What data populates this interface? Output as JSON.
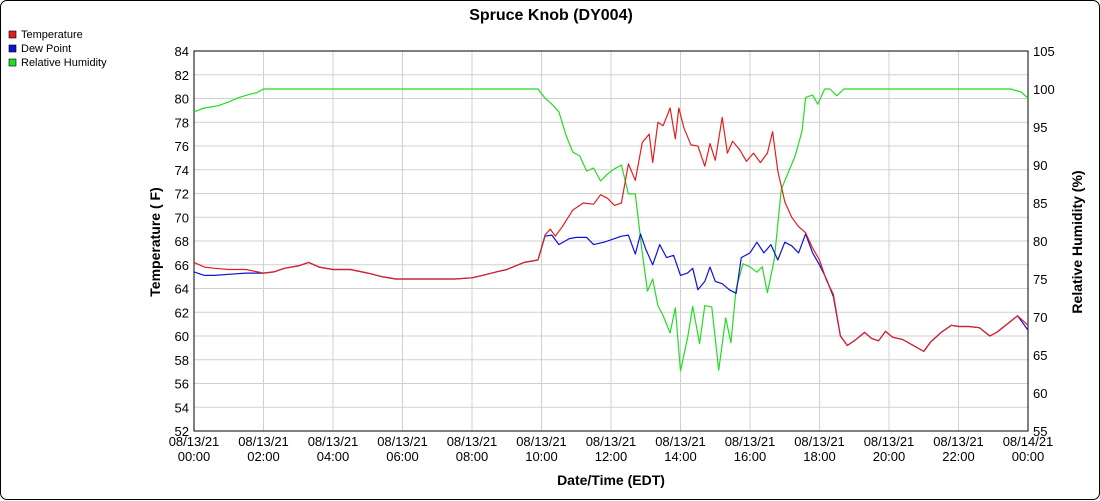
{
  "chart_data": {
    "type": "line",
    "title": "Spruce Knob (DY004)",
    "xlabel": "Date/Time (EDT)",
    "ylabel": "Temperature ( F)",
    "y2label": "Relative Humidity (%)",
    "xlim": [
      0,
      24
    ],
    "ylim": [
      52,
      84
    ],
    "y2lim": [
      55,
      105
    ],
    "grid": true,
    "legend_position": "top-left",
    "x_ticks": [
      {
        "date": "08/13/21",
        "time": "00:00"
      },
      {
        "date": "08/13/21",
        "time": "02:00"
      },
      {
        "date": "08/13/21",
        "time": "04:00"
      },
      {
        "date": "08/13/21",
        "time": "06:00"
      },
      {
        "date": "08/13/21",
        "time": "08:00"
      },
      {
        "date": "08/13/21",
        "time": "10:00"
      },
      {
        "date": "08/13/21",
        "time": "12:00"
      },
      {
        "date": "08/13/21",
        "time": "14:00"
      },
      {
        "date": "08/13/21",
        "time": "16:00"
      },
      {
        "date": "08/13/21",
        "time": "18:00"
      },
      {
        "date": "08/13/21",
        "time": "20:00"
      },
      {
        "date": "08/13/21",
        "time": "22:00"
      },
      {
        "date": "08/14/21",
        "time": "00:00"
      }
    ],
    "y_ticks": [
      52,
      54,
      56,
      58,
      60,
      62,
      64,
      66,
      68,
      70,
      72,
      74,
      76,
      78,
      80,
      82,
      84
    ],
    "y2_ticks": [
      55,
      60,
      65,
      70,
      75,
      80,
      85,
      90,
      95,
      100,
      105
    ],
    "series": [
      {
        "name": "Temperature",
        "color": "#e02020",
        "axis": "left",
        "points": [
          [
            0,
            66.2
          ],
          [
            0.3,
            65.8
          ],
          [
            0.6,
            65.7
          ],
          [
            1,
            65.6
          ],
          [
            1.5,
            65.6
          ],
          [
            2,
            65.3
          ],
          [
            2.3,
            65.4
          ],
          [
            2.6,
            65.7
          ],
          [
            3,
            65.9
          ],
          [
            3.3,
            66.2
          ],
          [
            3.6,
            65.8
          ],
          [
            4,
            65.6
          ],
          [
            4.5,
            65.6
          ],
          [
            5,
            65.3
          ],
          [
            5.4,
            65.0
          ],
          [
            5.8,
            64.8
          ],
          [
            6,
            64.8
          ],
          [
            6.5,
            64.8
          ],
          [
            7,
            64.8
          ],
          [
            7.5,
            64.8
          ],
          [
            8,
            64.9
          ],
          [
            8.3,
            65.1
          ],
          [
            8.7,
            65.4
          ],
          [
            9,
            65.6
          ],
          [
            9.5,
            66.2
          ],
          [
            9.9,
            66.4
          ],
          [
            10.1,
            68.5
          ],
          [
            10.25,
            69.0
          ],
          [
            10.4,
            68.4
          ],
          [
            10.6,
            69.2
          ],
          [
            10.9,
            70.6
          ],
          [
            11.2,
            71.2
          ],
          [
            11.5,
            71.1
          ],
          [
            11.7,
            71.9
          ],
          [
            11.9,
            71.6
          ],
          [
            12.1,
            71.0
          ],
          [
            12.3,
            71.2
          ],
          [
            12.5,
            74.5
          ],
          [
            12.7,
            73.1
          ],
          [
            12.9,
            76.3
          ],
          [
            13.1,
            77.0
          ],
          [
            13.2,
            74.6
          ],
          [
            13.35,
            78.0
          ],
          [
            13.5,
            77.7
          ],
          [
            13.7,
            79.2
          ],
          [
            13.85,
            76.6
          ],
          [
            13.95,
            79.2
          ],
          [
            14.1,
            77.5
          ],
          [
            14.3,
            76.1
          ],
          [
            14.5,
            76.0
          ],
          [
            14.7,
            74.3
          ],
          [
            14.85,
            76.2
          ],
          [
            15,
            74.8
          ],
          [
            15.2,
            78.4
          ],
          [
            15.35,
            75.4
          ],
          [
            15.5,
            76.4
          ],
          [
            15.7,
            75.7
          ],
          [
            15.9,
            74.7
          ],
          [
            16.1,
            75.4
          ],
          [
            16.3,
            74.6
          ],
          [
            16.5,
            75.4
          ],
          [
            16.65,
            77.2
          ],
          [
            16.8,
            73.9
          ],
          [
            17,
            71.3
          ],
          [
            17.2,
            70.0
          ],
          [
            17.4,
            69.2
          ],
          [
            17.6,
            68.7
          ],
          [
            17.8,
            67.4
          ],
          [
            18,
            66.4
          ],
          [
            18.2,
            64.7
          ],
          [
            18.4,
            63.5
          ],
          [
            18.6,
            60.0
          ],
          [
            18.8,
            59.2
          ],
          [
            19,
            59.6
          ],
          [
            19.3,
            60.3
          ],
          [
            19.5,
            59.8
          ],
          [
            19.7,
            59.6
          ],
          [
            19.9,
            60.4
          ],
          [
            20.1,
            59.9
          ],
          [
            20.4,
            59.7
          ],
          [
            20.7,
            59.2
          ],
          [
            21,
            58.7
          ],
          [
            21.2,
            59.5
          ],
          [
            21.5,
            60.3
          ],
          [
            21.8,
            60.9
          ],
          [
            22,
            60.8
          ],
          [
            22.3,
            60.8
          ],
          [
            22.6,
            60.7
          ],
          [
            22.9,
            60.0
          ],
          [
            23.1,
            60.3
          ],
          [
            23.4,
            61.0
          ],
          [
            23.7,
            61.7
          ],
          [
            24,
            60.9
          ],
          [
            24.3,
            60.8
          ],
          [
            24.6,
            60.7
          ]
        ]
      },
      {
        "name": "Dew Point",
        "color": "#1010dd",
        "axis": "left",
        "points": [
          [
            0,
            65.4
          ],
          [
            0.3,
            65.1
          ],
          [
            0.6,
            65.1
          ],
          [
            1,
            65.2
          ],
          [
            1.5,
            65.3
          ],
          [
            2,
            65.3
          ],
          [
            2.3,
            65.4
          ],
          [
            2.6,
            65.7
          ],
          [
            3,
            65.9
          ],
          [
            3.3,
            66.2
          ],
          [
            3.6,
            65.8
          ],
          [
            4,
            65.6
          ],
          [
            4.5,
            65.6
          ],
          [
            5,
            65.3
          ],
          [
            5.4,
            65.0
          ],
          [
            5.8,
            64.8
          ],
          [
            6,
            64.8
          ],
          [
            6.5,
            64.8
          ],
          [
            7,
            64.8
          ],
          [
            7.5,
            64.8
          ],
          [
            8,
            64.9
          ],
          [
            8.3,
            65.1
          ],
          [
            8.7,
            65.4
          ],
          [
            9,
            65.6
          ],
          [
            9.5,
            66.2
          ],
          [
            9.9,
            66.4
          ],
          [
            10.1,
            68.4
          ],
          [
            10.3,
            68.5
          ],
          [
            10.5,
            67.7
          ],
          [
            10.8,
            68.2
          ],
          [
            11,
            68.3
          ],
          [
            11.3,
            68.3
          ],
          [
            11.5,
            67.7
          ],
          [
            11.8,
            67.9
          ],
          [
            12,
            68.1
          ],
          [
            12.3,
            68.4
          ],
          [
            12.5,
            68.5
          ],
          [
            12.7,
            66.9
          ],
          [
            12.85,
            68.6
          ],
          [
            13,
            67.3
          ],
          [
            13.2,
            66.0
          ],
          [
            13.4,
            67.7
          ],
          [
            13.6,
            66.6
          ],
          [
            13.8,
            66.8
          ],
          [
            14,
            65.1
          ],
          [
            14.2,
            65.3
          ],
          [
            14.35,
            65.7
          ],
          [
            14.5,
            63.9
          ],
          [
            14.7,
            64.6
          ],
          [
            14.85,
            65.8
          ],
          [
            15,
            64.6
          ],
          [
            15.2,
            64.4
          ],
          [
            15.4,
            63.9
          ],
          [
            15.6,
            63.6
          ],
          [
            15.75,
            66.6
          ],
          [
            16,
            67.0
          ],
          [
            16.2,
            67.9
          ],
          [
            16.4,
            67.0
          ],
          [
            16.6,
            67.7
          ],
          [
            16.8,
            66.4
          ],
          [
            17,
            67.9
          ],
          [
            17.2,
            67.6
          ],
          [
            17.4,
            67.0
          ],
          [
            17.6,
            68.6
          ],
          [
            17.8,
            67.0
          ],
          [
            18,
            66.0
          ],
          [
            18.2,
            64.8
          ],
          [
            18.4,
            63.3
          ],
          [
            18.6,
            60.0
          ],
          [
            18.8,
            59.2
          ],
          [
            19,
            59.6
          ],
          [
            19.3,
            60.3
          ],
          [
            19.5,
            59.8
          ],
          [
            19.7,
            59.6
          ],
          [
            19.9,
            60.4
          ],
          [
            20.1,
            59.9
          ],
          [
            20.4,
            59.7
          ],
          [
            20.7,
            59.2
          ],
          [
            21,
            58.7
          ],
          [
            21.2,
            59.5
          ],
          [
            21.5,
            60.3
          ],
          [
            21.8,
            60.9
          ],
          [
            22,
            60.8
          ],
          [
            22.3,
            60.8
          ],
          [
            22.6,
            60.7
          ],
          [
            22.9,
            60.0
          ],
          [
            23.1,
            60.3
          ],
          [
            23.4,
            61.0
          ],
          [
            23.7,
            61.7
          ],
          [
            24,
            60.5
          ],
          [
            24.3,
            60.6
          ],
          [
            24.6,
            60.6
          ]
        ]
      },
      {
        "name": "Relative Humidity",
        "color": "#22dd22",
        "axis": "right",
        "points": [
          [
            0,
            97.0
          ],
          [
            0.3,
            97.5
          ],
          [
            0.7,
            97.8
          ],
          [
            1,
            98.3
          ],
          [
            1.3,
            98.9
          ],
          [
            1.6,
            99.3
          ],
          [
            1.8,
            99.5
          ],
          [
            2,
            100
          ],
          [
            4,
            100
          ],
          [
            6,
            100
          ],
          [
            8,
            100
          ],
          [
            9.9,
            100
          ],
          [
            10.1,
            98.8
          ],
          [
            10.3,
            98.0
          ],
          [
            10.5,
            97.0
          ],
          [
            10.7,
            94.0
          ],
          [
            10.9,
            91.7
          ],
          [
            11.1,
            91.2
          ],
          [
            11.3,
            89.2
          ],
          [
            11.5,
            89.6
          ],
          [
            11.7,
            87.9
          ],
          [
            11.9,
            88.8
          ],
          [
            12.1,
            89.5
          ],
          [
            12.3,
            90.0
          ],
          [
            12.5,
            86.2
          ],
          [
            12.7,
            86.2
          ],
          [
            12.9,
            78.4
          ],
          [
            13.05,
            73.4
          ],
          [
            13.2,
            75.0
          ],
          [
            13.35,
            71.5
          ],
          [
            13.5,
            70.2
          ],
          [
            13.7,
            67.9
          ],
          [
            13.85,
            71.2
          ],
          [
            14,
            62.9
          ],
          [
            14.2,
            67.2
          ],
          [
            14.35,
            71.4
          ],
          [
            14.55,
            66.5
          ],
          [
            14.7,
            71.5
          ],
          [
            14.9,
            71.3
          ],
          [
            15.1,
            63.0
          ],
          [
            15.3,
            69.9
          ],
          [
            15.45,
            66.6
          ],
          [
            15.6,
            73.7
          ],
          [
            15.8,
            77.0
          ],
          [
            16,
            76.6
          ],
          [
            16.2,
            75.9
          ],
          [
            16.35,
            76.6
          ],
          [
            16.5,
            73.2
          ],
          [
            16.7,
            77.6
          ],
          [
            16.9,
            86.8
          ],
          [
            17.1,
            89.0
          ],
          [
            17.3,
            91.2
          ],
          [
            17.5,
            94.5
          ],
          [
            17.6,
            98.9
          ],
          [
            17.8,
            99.2
          ],
          [
            17.95,
            98.0
          ],
          [
            18.15,
            100
          ],
          [
            18.3,
            100
          ],
          [
            18.5,
            99.1
          ],
          [
            18.7,
            100
          ],
          [
            20,
            100
          ],
          [
            22,
            100
          ],
          [
            23.5,
            100
          ],
          [
            23.8,
            99.6
          ],
          [
            24,
            98.8
          ],
          [
            24.3,
            99.2
          ],
          [
            24.6,
            99.2
          ]
        ]
      }
    ]
  }
}
